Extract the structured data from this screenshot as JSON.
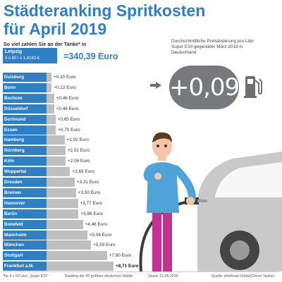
{
  "header": {
    "title_line1": "Städteranking Spritkosten",
    "title_line2": "für April 2019",
    "question": "So viel zahlen Sie an der Tanke* in"
  },
  "leipzig": {
    "city": "Leipzig",
    "formula": "4 x 60 l x 1,4183 €",
    "total": "=340,39 Euro"
  },
  "ranking": [
    {
      "city": "Duisburg",
      "delta": "+0,10 Euro",
      "value": 0.1
    },
    {
      "city": "Bonn",
      "delta": "+0,12 Euro",
      "value": 0.12
    },
    {
      "city": "Bochum",
      "delta": "+0,46 Euro",
      "value": 0.46
    },
    {
      "city": "Düsseldorf",
      "delta": "+0,46 Euro",
      "value": 0.46
    },
    {
      "city": "Dortmund",
      "delta": "+0,65 Euro",
      "value": 0.65
    },
    {
      "city": "Essen",
      "delta": "+0,70 Euro",
      "value": 0.7
    },
    {
      "city": "Hamburg",
      "delta": "+1,92 Euro",
      "value": 1.92
    },
    {
      "city": "Nürnberg",
      "delta": "+2,02 Euro",
      "value": 2.02
    },
    {
      "city": "Köln",
      "delta": "+2,06 Euro",
      "value": 2.06
    },
    {
      "city": "Wuppertal",
      "delta": "+2,69 Euro",
      "value": 2.69
    },
    {
      "city": "Dresden",
      "delta": "+3,31 Euro",
      "value": 3.31
    },
    {
      "city": "Bremen",
      "delta": "+3,50 Euro",
      "value": 3.5
    },
    {
      "city": "Hannover",
      "delta": "+3,77 Euro",
      "value": 3.77
    },
    {
      "city": "Berlin",
      "delta": "+3,86 Euro",
      "value": 3.86
    },
    {
      "city": "Bielefeld",
      "delta": "+4,46 Euro",
      "value": 4.46
    },
    {
      "city": "Mannheim",
      "delta": "+5,06 Euro",
      "value": 5.06
    },
    {
      "city": "München",
      "delta": "+5,59 Euro",
      "value": 5.59
    },
    {
      "city": "Stuttgart",
      "delta": "+7,80 Euro",
      "value": 7.8
    },
    {
      "city": "Frankfurt a.M.",
      "delta": "+8,71 Euro",
      "value": 8.71
    }
  ],
  "price_change": {
    "description": "Durchschnittliche Preisänderung pro Liter Super E10 gegenüber März 2019 in Deutschland",
    "value": "+0,09"
  },
  "footer": {
    "note": "*für 4 x 60 Liter „Super E10“",
    "ranking_note": "Ranking der 20 größten deutschen Städte",
    "date": "Stand: 01.05.2019",
    "source": "Quelle: infoRoad GmbH/Clever Tanken"
  },
  "colors": {
    "accent": "#2e7fc3",
    "bar": "#bfbfbf",
    "badge": "#777a7c"
  }
}
